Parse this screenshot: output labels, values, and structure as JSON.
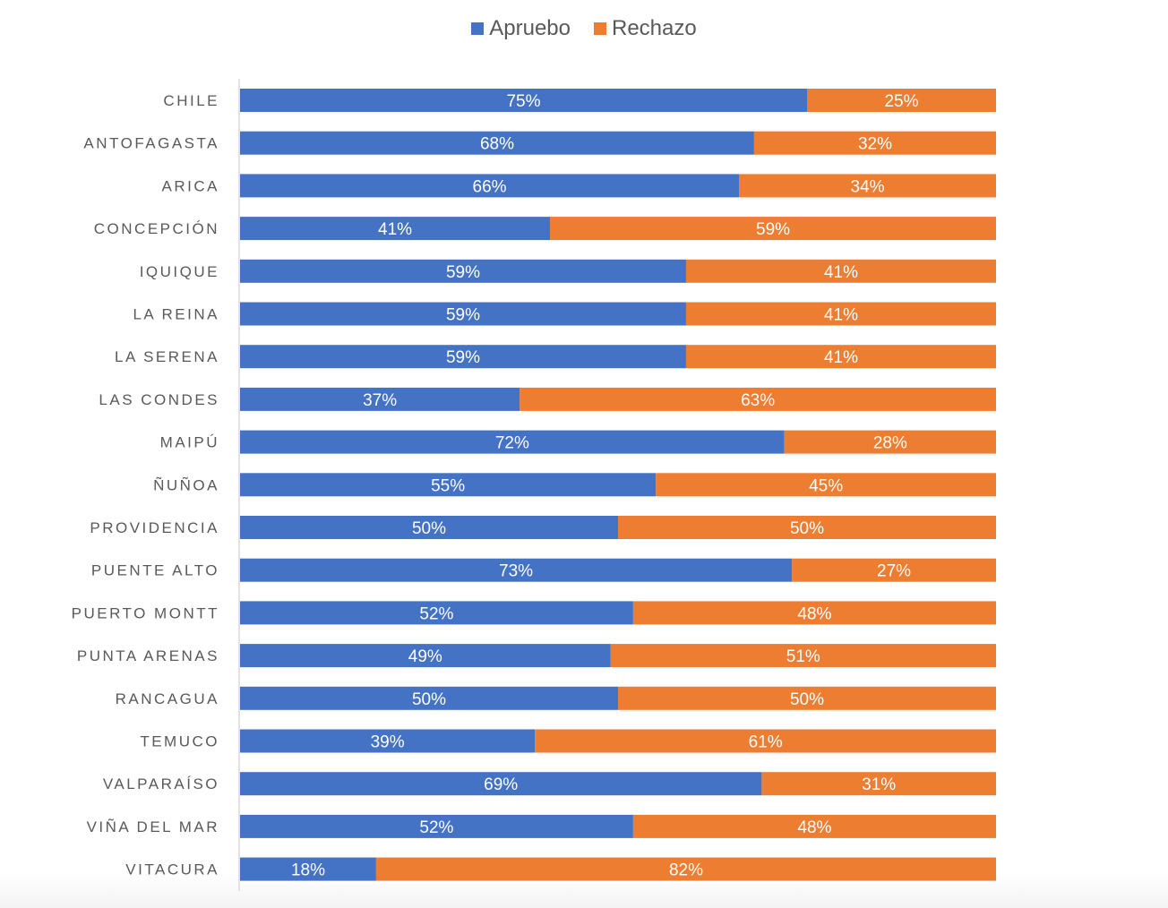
{
  "chart_data": {
    "type": "bar",
    "orientation": "horizontal",
    "stacked": "100%",
    "title": "",
    "legend": {
      "position": "top",
      "entries": [
        "Apruebo",
        "Rechazo"
      ]
    },
    "colors": {
      "Apruebo": "#4472C4",
      "Rechazo": "#ED7D31"
    },
    "categories": [
      "CHILE",
      "ANTOFAGASTA",
      "ARICA",
      "CONCEPCIÓN",
      "IQUIQUE",
      "LA REINA",
      "LA SERENA",
      "LAS CONDES",
      "MAIPÚ",
      "ÑUÑOA",
      "PROVIDENCIA",
      "PUENTE ALTO",
      "PUERTO MONTT",
      "PUNTA ARENAS",
      "RANCAGUA",
      "TEMUCO",
      "VALPARAÍSO",
      "VIÑA DEL MAR",
      "VITACURA"
    ],
    "series": [
      {
        "name": "Apruebo",
        "values": [
          75,
          68,
          66,
          41,
          59,
          59,
          59,
          37,
          72,
          55,
          50,
          73,
          52,
          49,
          50,
          39,
          69,
          52,
          18
        ]
      },
      {
        "name": "Rechazo",
        "values": [
          25,
          32,
          34,
          59,
          41,
          41,
          41,
          63,
          28,
          45,
          50,
          27,
          48,
          51,
          50,
          61,
          31,
          48,
          82
        ]
      }
    ],
    "value_format": "{v}%",
    "xlim": [
      0,
      100
    ],
    "grid": false
  }
}
